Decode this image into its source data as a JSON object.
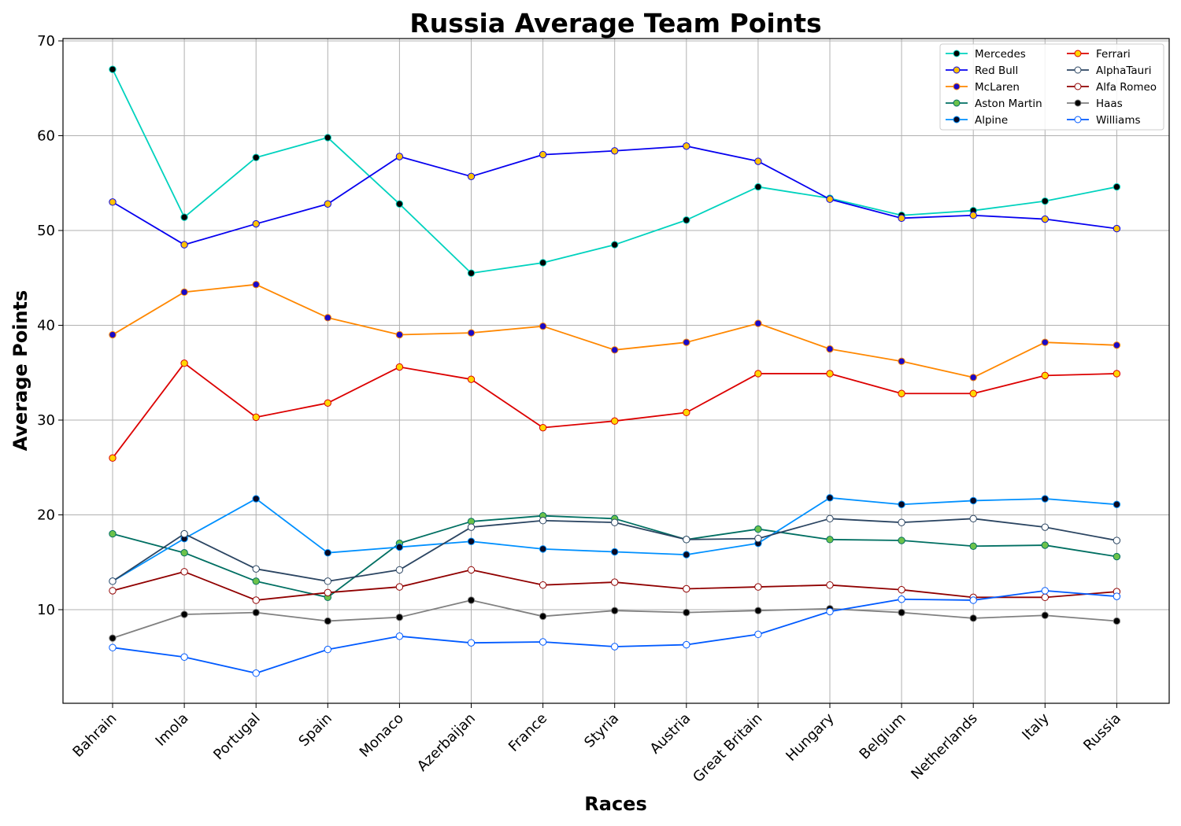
{
  "chart_data": {
    "type": "line",
    "title": "Russia Average Team Points",
    "xlabel": "Races",
    "ylabel": "Average Points",
    "ylim": [
      0,
      70
    ],
    "yticks": [
      10,
      20,
      30,
      40,
      50,
      60,
      70
    ],
    "grid": true,
    "legend_position": "top-right",
    "legend_columns": 2,
    "categories": [
      "Bahrain",
      "Imola",
      "Portugal",
      "Spain",
      "Monaco",
      "Azerbaijan",
      "France",
      "Styria",
      "Austria",
      "Great Britain",
      "Hungary",
      "Belgium",
      "Netherlands",
      "Italy",
      "Russia"
    ],
    "series": [
      {
        "name": "Mercedes",
        "color": "#00d2be",
        "marker_fill": "#000000",
        "values": [
          67.0,
          51.4,
          57.7,
          59.8,
          52.8,
          45.5,
          46.6,
          48.5,
          51.1,
          54.6,
          53.4,
          51.6,
          52.1,
          53.1,
          54.6
        ]
      },
      {
        "name": "Red Bull",
        "color": "#0600ef",
        "marker_fill": "#ffc107",
        "values": [
          53.0,
          48.5,
          50.7,
          52.8,
          57.8,
          55.7,
          58.0,
          58.4,
          58.9,
          57.3,
          53.3,
          51.3,
          51.6,
          51.2,
          50.2
        ]
      },
      {
        "name": "McLaren",
        "color": "#ff8700",
        "marker_fill": "#1a0ac8",
        "values": [
          39.0,
          43.5,
          44.3,
          40.8,
          39.0,
          39.2,
          39.9,
          37.4,
          38.2,
          40.2,
          37.5,
          36.2,
          34.5,
          38.2,
          37.9
        ]
      },
      {
        "name": "Aston Martin",
        "color": "#006f62",
        "marker_fill": "#6cc24a",
        "values": [
          18.0,
          16.0,
          13.0,
          11.3,
          17.0,
          19.3,
          19.9,
          19.6,
          17.4,
          18.5,
          17.4,
          17.3,
          16.7,
          16.8,
          15.6
        ]
      },
      {
        "name": "Alpine",
        "color": "#0090ff",
        "marker_fill": "#0a0a23",
        "values": [
          13.0,
          17.5,
          21.7,
          16.0,
          16.6,
          17.2,
          16.4,
          16.1,
          15.8,
          17.0,
          21.8,
          21.1,
          21.5,
          21.7,
          21.1
        ]
      },
      {
        "name": "Ferrari",
        "color": "#dc0000",
        "marker_fill": "#ffd700",
        "values": [
          26.0,
          36.0,
          30.3,
          31.8,
          35.6,
          34.3,
          29.2,
          29.9,
          30.8,
          34.9,
          34.9,
          32.8,
          32.8,
          34.7,
          34.9
        ]
      },
      {
        "name": "AlphaTauri",
        "color": "#2b4562",
        "marker_fill": "#ffffff",
        "values": [
          13.0,
          18.0,
          14.3,
          13.0,
          14.2,
          18.7,
          19.4,
          19.2,
          17.4,
          17.5,
          19.6,
          19.2,
          19.6,
          18.7,
          17.3
        ]
      },
      {
        "name": "Alfa Romeo",
        "color": "#900000",
        "marker_fill": "#ffffff",
        "values": [
          12.0,
          14.0,
          11.0,
          11.8,
          12.4,
          14.2,
          12.6,
          12.9,
          12.2,
          12.4,
          12.6,
          12.1,
          11.3,
          11.3,
          11.9
        ]
      },
      {
        "name": "Haas",
        "color": "#808080",
        "marker_fill": "#000000",
        "values": [
          7.0,
          9.5,
          9.7,
          8.8,
          9.2,
          11.0,
          9.3,
          9.9,
          9.7,
          9.9,
          10.1,
          9.7,
          9.1,
          9.4,
          8.8
        ]
      },
      {
        "name": "Williams",
        "color": "#005aff",
        "marker_fill": "#ffffff",
        "values": [
          6.0,
          5.0,
          3.3,
          5.8,
          7.2,
          6.5,
          6.6,
          6.1,
          6.3,
          7.4,
          9.8,
          11.1,
          11.0,
          12.0,
          11.4
        ]
      }
    ]
  }
}
